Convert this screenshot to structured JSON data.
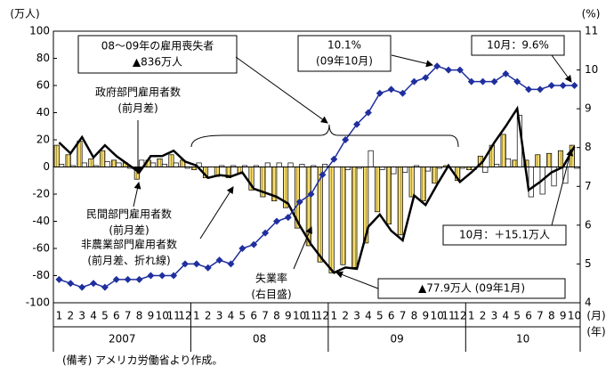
{
  "chart_data": {
    "type": "combo",
    "categories": [
      "1",
      "2",
      "3",
      "4",
      "5",
      "6",
      "7",
      "8",
      "9",
      "10",
      "11",
      "12",
      "1",
      "2",
      "3",
      "4",
      "5",
      "6",
      "7",
      "8",
      "9",
      "10",
      "11",
      "12",
      "1",
      "2",
      "3",
      "4",
      "5",
      "6",
      "7",
      "8",
      "9",
      "10",
      "11",
      "12",
      "1",
      "2",
      "3",
      "4",
      "5",
      "6",
      "7",
      "8",
      "9",
      "10"
    ],
    "year_labels": [
      "2007",
      "08",
      "09",
      "10"
    ],
    "x_unit_labels": [
      "(月)",
      "(年)"
    ],
    "y_label": "(万人)",
    "y2_label": "(%)",
    "ylim": [
      -100,
      100
    ],
    "yticks": [
      -100,
      -80,
      -60,
      -40,
      -20,
      0,
      20,
      40,
      60,
      80,
      100
    ],
    "y2lim": [
      4,
      11
    ],
    "y2ticks": [
      4,
      5,
      6,
      7,
      8,
      9,
      10,
      11
    ],
    "series": [
      {
        "kind": "bar",
        "color": "#f3dc6e",
        "values": [
          16,
          9,
          19,
          6,
          12,
          5,
          3,
          -9,
          5,
          6,
          9,
          5,
          -2,
          -8,
          -7,
          -8,
          -5,
          -17,
          -22,
          -25,
          -30,
          -45,
          -58,
          -70,
          -78,
          -72,
          -74,
          -56,
          -33,
          -42,
          -50,
          -22,
          -25,
          -12,
          1,
          -10,
          -2,
          8,
          16,
          24,
          5,
          5,
          9,
          10,
          12,
          16
        ]
      },
      {
        "kind": "bar",
        "color": "#ffffff",
        "values": [
          2,
          1,
          3,
          1,
          4,
          3,
          -1,
          5,
          3,
          2,
          3,
          -1,
          3,
          0,
          1,
          1,
          1,
          1,
          3,
          3,
          3,
          2,
          1,
          2,
          0,
          -2,
          -1,
          12,
          -2,
          -5,
          -4,
          1,
          -3,
          -1,
          0,
          -1,
          -2,
          -4,
          2,
          6,
          38,
          -22,
          -20,
          -14,
          -12,
          -1
        ]
      },
      {
        "kind": "line",
        "color": "#000000",
        "values": [
          18,
          10,
          22,
          7,
          16,
          8,
          2,
          -4,
          8,
          8,
          12,
          4,
          1,
          -8,
          -6,
          -7,
          -4,
          -16,
          -19,
          -22,
          -27,
          -43,
          -57,
          -68,
          -77.9,
          -74,
          -75,
          -44,
          -35,
          -47,
          -54,
          -21,
          -28,
          -13,
          1,
          -11,
          -4,
          4,
          18,
          30,
          43,
          -17,
          -11,
          -4,
          0,
          15.1
        ]
      },
      {
        "kind": "line",
        "axis": "y2",
        "marker": "diamond",
        "color": "#1f2f9e",
        "values": [
          4.6,
          4.5,
          4.4,
          4.5,
          4.4,
          4.6,
          4.6,
          4.6,
          4.7,
          4.7,
          4.7,
          5.0,
          5.0,
          4.9,
          5.1,
          5.0,
          5.4,
          5.5,
          5.8,
          6.1,
          6.2,
          6.6,
          6.8,
          7.3,
          7.7,
          8.2,
          8.6,
          8.9,
          9.4,
          9.5,
          9.4,
          9.7,
          9.8,
          10.1,
          10.0,
          10.0,
          9.7,
          9.7,
          9.7,
          9.9,
          9.7,
          9.5,
          9.5,
          9.6,
          9.6,
          9.6
        ]
      }
    ],
    "annotations": [
      {
        "lines": [
          "08～09年の雇用喪失者",
          "▲836万人"
        ]
      },
      {
        "lines": [
          "10.1%",
          "(09年10月)"
        ]
      },
      {
        "lines": [
          "10月：9.6%"
        ]
      },
      {
        "lines": [
          "政府部門雇用者数",
          "(前月差)"
        ]
      },
      {
        "lines": [
          "民間部門雇用者数",
          "(前月差)"
        ]
      },
      {
        "lines": [
          "非農業部門雇用者数",
          "(前月差、折れ線)"
        ]
      },
      {
        "lines": [
          "失業率",
          "(右目盛)"
        ]
      },
      {
        "lines": [
          "10月：＋15.1万人"
        ]
      },
      {
        "lines": [
          "▲77.9万人 (09年1月)"
        ]
      }
    ]
  },
  "note": "(備考) アメリカ労働省より作成。"
}
